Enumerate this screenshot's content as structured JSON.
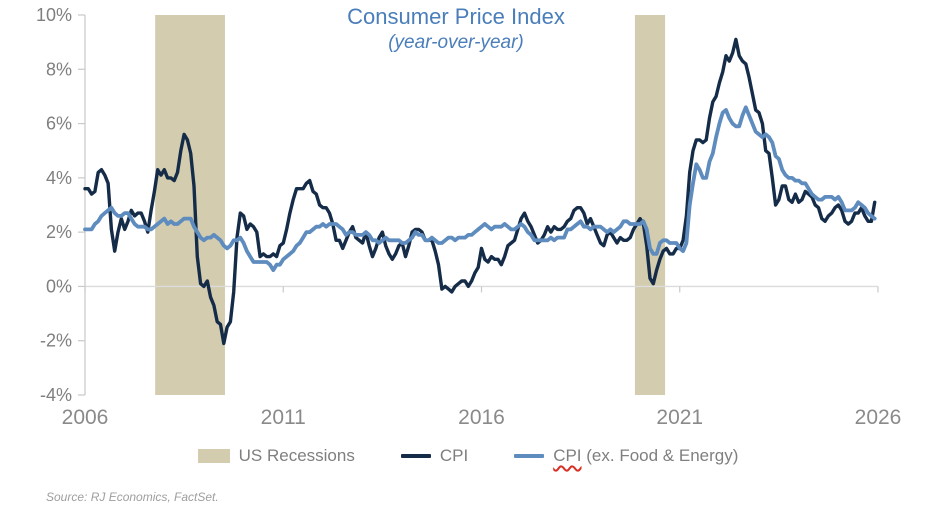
{
  "title": {
    "text": "Consumer Price Index",
    "subtitle": "(year-over-year)"
  },
  "source": "Source: RJ Economics, FactSet.",
  "legend": {
    "items": [
      {
        "id": "recessions",
        "label": "US Recessions"
      },
      {
        "id": "cpi",
        "label": "CPI"
      },
      {
        "id": "core-cpi",
        "label_word": "CPI",
        "label_rest": " (ex. Food & Energy)"
      }
    ]
  },
  "colors": {
    "title_text": "#4a7eba",
    "cpi_line": "#152c49",
    "core_cpi_line": "#5e8cbe",
    "recession_band": "#d3ccae",
    "zero_gridline": "#dcdcdc",
    "axis_line": "#c9c9c9",
    "axis_text": "#7f7f7f",
    "legend_text": "#7f7f7f",
    "source_text": "#9e9e9e",
    "spellcheck_underline": "#d93025"
  },
  "chart_data": {
    "type": "line",
    "title": "Consumer Price Index",
    "subtitle": "(year-over-year)",
    "xlim": [
      2006,
      2026
    ],
    "ylim": [
      -4,
      10
    ],
    "x_ticks": [
      2006,
      2011,
      2016,
      2021,
      2026
    ],
    "y_ticks": [
      -4,
      -2,
      0,
      2,
      4,
      6,
      8,
      10
    ],
    "y_tick_suffix": "%",
    "grid": "zero-line-only",
    "legend_position": "bottom",
    "x_start_year": 2006,
    "points_per_year": 12,
    "recessions": [
      {
        "label": "US Recessions",
        "start": 2007.77,
        "end": 2009.53
      },
      {
        "label": "US Recessions",
        "start": 2019.87,
        "end": 2020.63
      }
    ],
    "series": [
      {
        "name": "CPI",
        "color": "#152c49",
        "stroke_width": 3.4,
        "values": [
          3.6,
          3.6,
          3.4,
          3.5,
          4.2,
          4.3,
          4.1,
          3.8,
          2.1,
          1.3,
          2.0,
          2.5,
          2.1,
          2.4,
          2.8,
          2.6,
          2.7,
          2.7,
          2.4,
          2.0,
          2.8,
          3.5,
          4.3,
          4.1,
          4.3,
          4.0,
          4.0,
          3.9,
          4.2,
          5.0,
          5.6,
          5.4,
          4.9,
          3.7,
          1.1,
          0.1,
          0.0,
          0.2,
          -0.4,
          -0.7,
          -1.3,
          -1.4,
          -2.1,
          -1.5,
          -1.3,
          -0.2,
          1.8,
          2.7,
          2.6,
          2.1,
          2.3,
          2.2,
          2.0,
          1.1,
          1.2,
          1.1,
          1.1,
          1.2,
          1.1,
          1.5,
          1.6,
          2.1,
          2.7,
          3.2,
          3.6,
          3.6,
          3.6,
          3.8,
          3.9,
          3.5,
          3.4,
          3.0,
          2.9,
          2.9,
          2.7,
          2.3,
          1.7,
          1.7,
          1.4,
          1.7,
          2.0,
          2.2,
          1.8,
          1.7,
          1.6,
          2.0,
          1.5,
          1.1,
          1.4,
          1.8,
          2.0,
          1.5,
          1.2,
          1.0,
          1.2,
          1.5,
          1.6,
          1.1,
          1.5,
          2.0,
          2.1,
          2.1,
          2.0,
          1.7,
          1.7,
          1.7,
          1.3,
          0.8,
          -0.1,
          0.0,
          -0.1,
          -0.2,
          0.0,
          0.1,
          0.2,
          0.2,
          0.0,
          0.2,
          0.5,
          0.7,
          1.4,
          1.0,
          0.9,
          1.1,
          1.0,
          1.0,
          0.8,
          1.1,
          1.5,
          1.6,
          1.7,
          2.1,
          2.5,
          2.7,
          2.4,
          2.2,
          1.9,
          1.6,
          1.7,
          1.9,
          2.2,
          2.0,
          2.2,
          2.1,
          2.1,
          2.2,
          2.4,
          2.5,
          2.8,
          2.9,
          2.9,
          2.7,
          2.3,
          2.5,
          2.2,
          1.9,
          1.6,
          1.5,
          1.9,
          2.0,
          1.8,
          1.6,
          1.8,
          1.7,
          1.7,
          1.8,
          2.1,
          2.3,
          2.5,
          2.3,
          1.5,
          0.3,
          0.1,
          0.6,
          1.0,
          1.3,
          1.4,
          1.2,
          1.2,
          1.4,
          1.4,
          1.7,
          2.6,
          4.2,
          5.0,
          5.4,
          5.4,
          5.3,
          5.4,
          6.2,
          6.8,
          7.0,
          7.5,
          7.9,
          8.5,
          8.3,
          8.6,
          9.1,
          8.5,
          8.3,
          8.2,
          7.7,
          7.1,
          6.5,
          6.4,
          6.0,
          5.0,
          4.9,
          4.0,
          3.0,
          3.2,
          3.7,
          3.7,
          3.2,
          3.1,
          3.4,
          3.1,
          3.2,
          3.5,
          3.4,
          3.3,
          3.0,
          2.9,
          2.5,
          2.4,
          2.6,
          2.7,
          2.9,
          3.0,
          2.8,
          2.4,
          2.3,
          2.4,
          2.7,
          2.7,
          2.9,
          2.6,
          2.4,
          2.4,
          3.1
        ]
      },
      {
        "name": "CPI (ex. Food & Energy)",
        "color": "#5e8cbe",
        "stroke_width": 3.8,
        "values": [
          2.1,
          2.1,
          2.1,
          2.3,
          2.4,
          2.6,
          2.7,
          2.8,
          2.9,
          2.7,
          2.6,
          2.6,
          2.7,
          2.7,
          2.5,
          2.3,
          2.2,
          2.2,
          2.2,
          2.1,
          2.1,
          2.2,
          2.3,
          2.4,
          2.5,
          2.3,
          2.4,
          2.3,
          2.3,
          2.4,
          2.5,
          2.5,
          2.5,
          2.2,
          2.0,
          1.8,
          1.7,
          1.8,
          1.8,
          1.9,
          1.8,
          1.7,
          1.5,
          1.4,
          1.5,
          1.7,
          1.7,
          1.8,
          1.6,
          1.3,
          1.1,
          0.9,
          0.9,
          0.9,
          0.9,
          0.9,
          0.8,
          0.6,
          0.8,
          0.8,
          1.0,
          1.1,
          1.2,
          1.3,
          1.5,
          1.6,
          1.8,
          2.0,
          2.0,
          2.1,
          2.2,
          2.2,
          2.3,
          2.2,
          2.3,
          2.3,
          2.3,
          2.2,
          2.1,
          1.9,
          2.0,
          2.0,
          1.9,
          1.9,
          1.9,
          2.0,
          1.9,
          1.7,
          1.7,
          1.6,
          1.7,
          1.8,
          1.7,
          1.7,
          1.7,
          1.7,
          1.6,
          1.6,
          1.7,
          1.8,
          2.0,
          1.9,
          1.9,
          1.7,
          1.7,
          1.8,
          1.7,
          1.6,
          1.6,
          1.7,
          1.8,
          1.8,
          1.7,
          1.8,
          1.8,
          1.8,
          1.9,
          1.9,
          2.0,
          2.1,
          2.2,
          2.3,
          2.2,
          2.1,
          2.2,
          2.2,
          2.2,
          2.3,
          2.2,
          2.1,
          2.1,
          2.2,
          2.3,
          2.2,
          2.0,
          1.9,
          1.7,
          1.7,
          1.7,
          1.7,
          1.7,
          1.8,
          1.7,
          1.8,
          1.8,
          1.8,
          2.1,
          2.1,
          2.2,
          2.3,
          2.4,
          2.2,
          2.2,
          2.1,
          2.2,
          2.2,
          2.2,
          2.1,
          2.0,
          2.1,
          2.0,
          2.1,
          2.2,
          2.4,
          2.4,
          2.3,
          2.3,
          2.3,
          2.3,
          2.4,
          2.1,
          1.4,
          1.2,
          1.2,
          1.6,
          1.7,
          1.7,
          1.6,
          1.6,
          1.6,
          1.4,
          1.3,
          1.6,
          3.0,
          3.8,
          4.5,
          4.3,
          4.0,
          4.0,
          4.6,
          4.9,
          5.5,
          6.0,
          6.4,
          6.5,
          6.2,
          6.0,
          5.9,
          5.9,
          6.3,
          6.6,
          6.3,
          6.0,
          5.7,
          5.6,
          5.5,
          5.6,
          5.5,
          5.3,
          4.8,
          4.7,
          4.3,
          4.1,
          4.0,
          4.0,
          3.9,
          3.9,
          3.8,
          3.8,
          3.6,
          3.4,
          3.3,
          3.2,
          3.2,
          3.3,
          3.3,
          3.3,
          3.2,
          3.3,
          3.1,
          2.8,
          2.8,
          2.8,
          2.9,
          3.1,
          3.0,
          2.9,
          2.7,
          2.6,
          2.5
        ]
      }
    ]
  }
}
